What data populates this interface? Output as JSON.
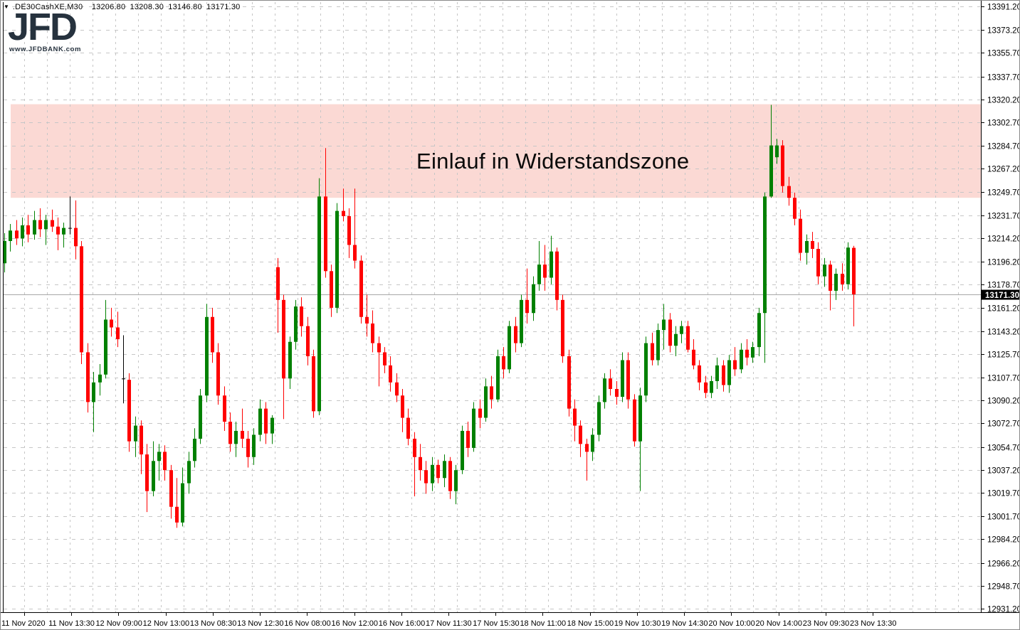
{
  "header": {
    "collapse_arrow": "▼",
    "symbol": ".DE30CashXE",
    "timeframe": "M30",
    "line": ".DE30CashXE,M30  13206.80 13208.30 13146.80 13171.30",
    "open": "13206.80",
    "high": "13208.30",
    "low": "13146.80",
    "close": "13171.30"
  },
  "logo": {
    "text": "JFD",
    "subtext": "www.JFDBANK.com",
    "color": "#26323e"
  },
  "annotation": {
    "text": "Einlauf in Widerstandszone"
  },
  "colors": {
    "background": "#ffffff",
    "grid": "#c6c6c6",
    "border": "#000000",
    "current_price_line": "#a8a8a8",
    "current_price_tag_bg": "#000000",
    "current_price_tag_fg": "#ffffff",
    "zone_fill": "#fbd9d4"
  },
  "chart_data": {
    "type": "candlestick",
    "symbol": ".DE30CashXE",
    "timeframe_minutes": 30,
    "title": "",
    "grid": true,
    "price_range": [
      12931.2,
      13391.2
    ],
    "y_tick_labels": [
      "13391.20",
      "13373.20",
      "13355.70",
      "13337.70",
      "13320.20",
      "13302.70",
      "13284.70",
      "13267.20",
      "13249.70",
      "13231.70",
      "13214.20",
      "13196.20",
      "13178.70",
      "13161.20",
      "13143.20",
      "13125.70",
      "13107.70",
      "13090.20",
      "13072.70",
      "13054.70",
      "13037.20",
      "13019.70",
      "13001.70",
      "12984.20",
      "12966.20",
      "12948.70",
      "12931.20"
    ],
    "x_tick_labels": [
      "11 Nov 2020",
      "11 Nov 13:30",
      "12 Nov 09:00",
      "12 Nov 13:00",
      "13 Nov 08:30",
      "13 Nov 12:30",
      "16 Nov 08:00",
      "16 Nov 12:00",
      "16 Nov 16:00",
      "17 Nov 11:30",
      "17 Nov 15:30",
      "18 Nov 11:00",
      "18 Nov 15:00",
      "19 Nov 10:30",
      "19 Nov 14:30",
      "20 Nov 10:00",
      "20 Nov 14:00",
      "23 Nov 09:30",
      "23 Nov 13:30"
    ],
    "current_price": 13171.3,
    "current_price_label": "13171.30",
    "up_color": "#008000",
    "down_color": "#ff0000",
    "doji_color": "#000000",
    "resistance_zone": {
      "low": 13245.0,
      "high": 13316.5,
      "label": "Einlauf in Widerstandszone"
    },
    "candles": [
      [
        13195,
        13218,
        13188,
        13212
      ],
      [
        13212,
        13225,
        13204,
        13220
      ],
      [
        13220,
        13228,
        13209,
        13214
      ],
      [
        13214,
        13230,
        13208,
        13224
      ],
      [
        13224,
        13232,
        13211,
        13217
      ],
      [
        13217,
        13235,
        13213,
        13228
      ],
      [
        13228,
        13237,
        13215,
        13221
      ],
      [
        13221,
        13232,
        13209,
        13228
      ],
      [
        13228,
        13236,
        13219,
        13223
      ],
      [
        13223,
        13230,
        13205,
        13217
      ],
      [
        13217,
        13226,
        13207,
        13222
      ],
      [
        13222,
        13246,
        13217,
        13222
      ],
      [
        13222,
        13243,
        13198,
        13208
      ],
      [
        13208,
        13212,
        13118,
        13127
      ],
      [
        13127,
        13134,
        13081,
        13089
      ],
      [
        13089,
        13112,
        13066,
        13104
      ],
      [
        13104,
        13118,
        13094,
        13110
      ],
      [
        13110,
        13167,
        13107,
        13152
      ],
      [
        13152,
        13161,
        13139,
        13146
      ],
      [
        13146,
        13158,
        13131,
        13137
      ],
      [
        13107,
        13140,
        13088,
        13107
      ],
      [
        13106,
        13111,
        13051,
        13059
      ],
      [
        13059,
        13078,
        13047,
        13071
      ],
      [
        13071,
        13075,
        13034,
        13049
      ],
      [
        13049,
        13057,
        13005,
        13021
      ],
      [
        13021,
        13059,
        13017,
        13044
      ],
      [
        13044,
        13057,
        13029,
        13051
      ],
      [
        13051,
        13056,
        13029,
        13037
      ],
      [
        13037,
        13041,
        13000,
        13009
      ],
      [
        13009,
        13031,
        12993,
        12997
      ],
      [
        12997,
        13039,
        12994,
        13027
      ],
      [
        13027,
        13051,
        13019,
        13044
      ],
      [
        13044,
        13069,
        13039,
        13061
      ],
      [
        13061,
        13099,
        13057,
        13094
      ],
      [
        13094,
        13164,
        13089,
        13154
      ],
      [
        13154,
        13161,
        13119,
        13127
      ],
      [
        13127,
        13134,
        13087,
        13094
      ],
      [
        13094,
        13101,
        13067,
        13074
      ],
      [
        13074,
        13081,
        13051,
        13057
      ],
      [
        13057,
        13074,
        13047,
        13067
      ],
      [
        13067,
        13084,
        13054,
        13061
      ],
      [
        13061,
        13067,
        13039,
        13047
      ],
      [
        13047,
        13069,
        13041,
        13064
      ],
      [
        13064,
        13091,
        13059,
        13084
      ],
      [
        13084,
        13089,
        13057,
        13065
      ],
      [
        13065,
        13079,
        13057,
        13077
      ],
      [
        13192,
        13199,
        13142,
        13167
      ],
      [
        13167,
        13171,
        13076,
        13107
      ],
      [
        13107,
        13139,
        13099,
        13135
      ],
      [
        13135,
        13167,
        13129,
        13162
      ],
      [
        13162,
        13169,
        13139,
        13147
      ],
      [
        13147,
        13154,
        13117,
        13124
      ],
      [
        13124,
        13129,
        13077,
        13082
      ],
      [
        13082,
        13260,
        13079,
        13246
      ],
      [
        13246,
        13283,
        13184,
        13189
      ],
      [
        13189,
        13194,
        13154,
        13161
      ],
      [
        13161,
        13241,
        13157,
        13235
      ],
      [
        13235,
        13252,
        13227,
        13231
      ],
      [
        13231,
        13237,
        13199,
        13209
      ],
      [
        13209,
        13252,
        13191,
        13197
      ],
      [
        13197,
        13201,
        13149,
        13154
      ],
      [
        13154,
        13171,
        13139,
        13149
      ],
      [
        13149,
        13159,
        13127,
        13134
      ],
      [
        13134,
        13139,
        13101,
        13127
      ],
      [
        13127,
        13131,
        13111,
        13117
      ],
      [
        13117,
        13124,
        13097,
        13104
      ],
      [
        13104,
        13111,
        13089,
        13094
      ],
      [
        13094,
        13099,
        13066,
        13077
      ],
      [
        13077,
        13084,
        13056,
        13061
      ],
      [
        13061,
        13066,
        13017,
        13047
      ],
      [
        13047,
        13057,
        13029,
        13037
      ],
      [
        13037,
        13044,
        13019,
        13027
      ],
      [
        13027,
        13047,
        13021,
        13041
      ],
      [
        13041,
        13045,
        13027,
        13031
      ],
      [
        13031,
        13049,
        13024,
        13044
      ],
      [
        13044,
        13047,
        13015,
        13021
      ],
      [
        13021,
        13041,
        13011,
        13037
      ],
      [
        13037,
        13071,
        13034,
        13067
      ],
      [
        13067,
        13074,
        13047,
        13054
      ],
      [
        13054,
        13089,
        13051,
        13084
      ],
      [
        13084,
        13091,
        13069,
        13077
      ],
      [
        13077,
        13107,
        13074,
        13101
      ],
      [
        13101,
        13109,
        13084,
        13091
      ],
      [
        13091,
        13129,
        13089,
        13124
      ],
      [
        13124,
        13131,
        13107,
        13114
      ],
      [
        13114,
        13151,
        13111,
        13147
      ],
      [
        13147,
        13154,
        13127,
        13134
      ],
      [
        13134,
        13171,
        13131,
        13167
      ],
      [
        13167,
        13191,
        13149,
        13157
      ],
      [
        13157,
        13185,
        13151,
        13179
      ],
      [
        13179,
        13212,
        13174,
        13194
      ],
      [
        13194,
        13209,
        13174,
        13184
      ],
      [
        13184,
        13216,
        13179,
        13204
      ],
      [
        13204,
        13207,
        13159,
        13167
      ],
      [
        13167,
        13171,
        13119,
        13124
      ],
      [
        13124,
        13129,
        13078,
        13084
      ],
      [
        13084,
        13091,
        13059,
        13071
      ],
      [
        13071,
        13075,
        13047,
        13057
      ],
      [
        13057,
        13061,
        13029,
        13051
      ],
      [
        13051,
        13069,
        13044,
        13064
      ],
      [
        13064,
        13094,
        13059,
        13089
      ],
      [
        13089,
        13111,
        13084,
        13107
      ],
      [
        13107,
        13114,
        13094,
        13099
      ],
      [
        13099,
        13105,
        13087,
        13093
      ],
      [
        13093,
        13127,
        13089,
        13121
      ],
      [
        13121,
        13127,
        13084,
        13091
      ],
      [
        13091,
        13095,
        13055,
        13059
      ],
      [
        13059,
        13100,
        13021,
        13094
      ],
      [
        13094,
        13139,
        13089,
        13134
      ],
      [
        13134,
        13142,
        13117,
        13121
      ],
      [
        13121,
        13149,
        13117,
        13144
      ],
      [
        13144,
        13164,
        13129,
        13152
      ],
      [
        13152,
        13157,
        13127,
        13132
      ],
      [
        13132,
        13147,
        13124,
        13141
      ],
      [
        13141,
        13151,
        13134,
        13147
      ],
      [
        13147,
        13151,
        13127,
        13129
      ],
      [
        13129,
        13137,
        13114,
        13117
      ],
      [
        13117,
        13121,
        13098,
        13104
      ],
      [
        13104,
        13109,
        13092,
        13096
      ],
      [
        13096,
        13109,
        13092,
        13105
      ],
      [
        13105,
        13123,
        13099,
        13117
      ],
      [
        13117,
        13121,
        13097,
        13102
      ],
      [
        13102,
        13125,
        13096,
        13121
      ],
      [
        13121,
        13131,
        13109,
        13114
      ],
      [
        13114,
        13134,
        13111,
        13129
      ],
      [
        13129,
        13137,
        13117,
        13123
      ],
      [
        13123,
        13135,
        13119,
        13131
      ],
      [
        13131,
        13161,
        13124,
        13157
      ],
      [
        13157,
        13249,
        13119,
        13246
      ],
      [
        13246,
        13316,
        13245,
        13285
      ],
      [
        13276,
        13290,
        13271,
        13285
      ],
      [
        13285,
        13289,
        13249,
        13254
      ],
      [
        13254,
        13261,
        13239,
        13245
      ],
      [
        13245,
        13249,
        13224,
        13229
      ],
      [
        13229,
        13236,
        13197,
        13203
      ],
      [
        13203,
        13217,
        13194,
        13212
      ],
      [
        13212,
        13219,
        13199,
        13206
      ],
      [
        13206,
        13211,
        13179,
        13185
      ],
      [
        13185,
        13199,
        13177,
        13194
      ],
      [
        13194,
        13197,
        13159,
        13174
      ],
      [
        13174,
        13191,
        13167,
        13187
      ],
      [
        13187,
        13195,
        13174,
        13179
      ],
      [
        13179,
        13211,
        13175,
        13207
      ],
      [
        13206.8,
        13208.3,
        13146.8,
        13171.3
      ]
    ]
  }
}
